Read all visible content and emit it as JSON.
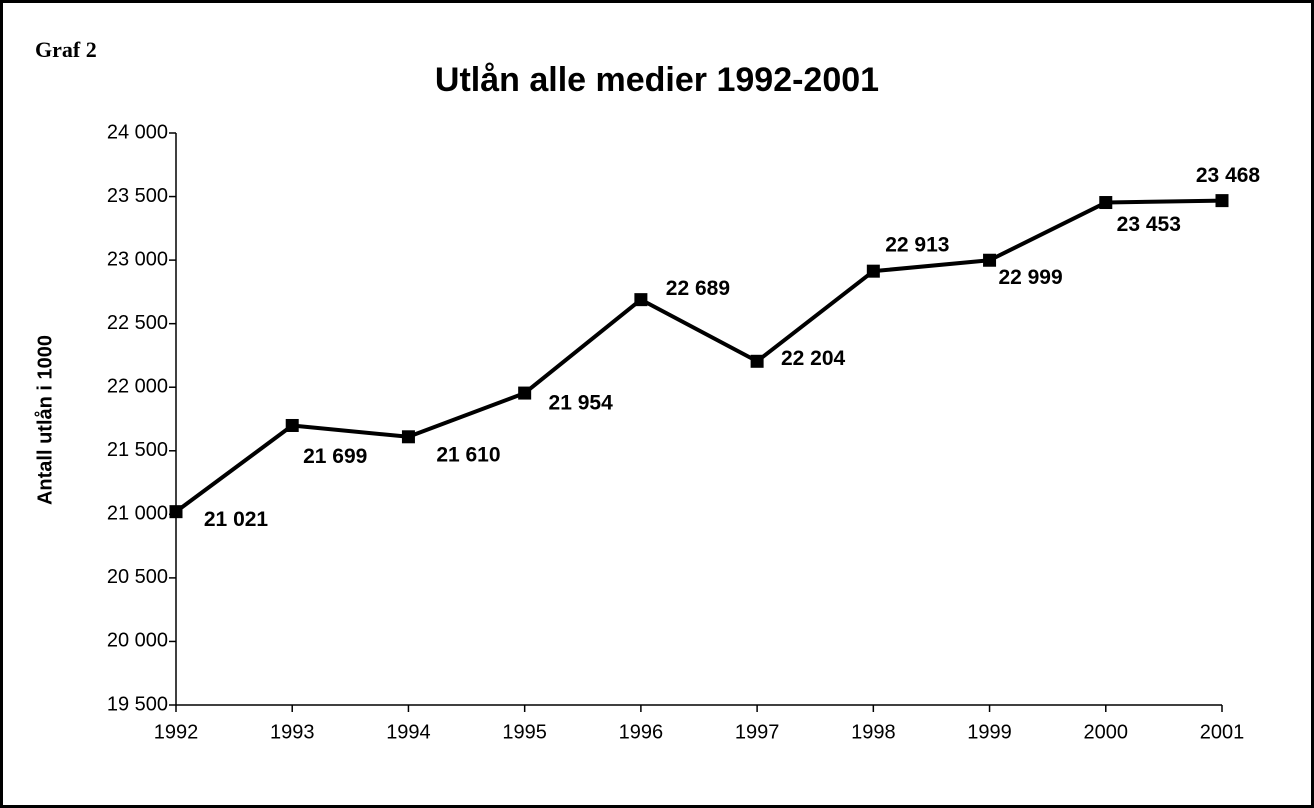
{
  "chart_data": {
    "type": "line",
    "annotation": "Graf 2",
    "title": "Utlån alle medier 1992-2001",
    "y_label": "Antall utlån i 1000",
    "categories": [
      "1992",
      "1993",
      "1994",
      "1995",
      "1996",
      "1997",
      "1998",
      "1999",
      "2000",
      "2001"
    ],
    "series": [
      {
        "name": "Utlån",
        "color": "#000000",
        "values": [
          21021,
          21699,
          21610,
          21954,
          22689,
          22204,
          22913,
          22999,
          23453,
          23468
        ],
        "value_labels": [
          "21 021",
          "21 699",
          "21 610",
          "21 954",
          "22 689",
          "22 204",
          "22 913",
          "22 999",
          "23 453",
          "23 468"
        ]
      }
    ],
    "ylim": [
      19500,
      24000
    ],
    "yticks": [
      {
        "value": 19500,
        "label": "19 500"
      },
      {
        "value": 20000,
        "label": "20 000"
      },
      {
        "value": 20500,
        "label": "20 500"
      },
      {
        "value": 21000,
        "label": "21 000"
      },
      {
        "value": 21500,
        "label": "21 500"
      },
      {
        "value": 22000,
        "label": "22 000"
      },
      {
        "value": 22500,
        "label": "22 500"
      },
      {
        "value": 23000,
        "label": "23 000"
      },
      {
        "value": 23500,
        "label": "23 500"
      },
      {
        "value": 24000,
        "label": "24 000"
      }
    ],
    "grid": false
  }
}
